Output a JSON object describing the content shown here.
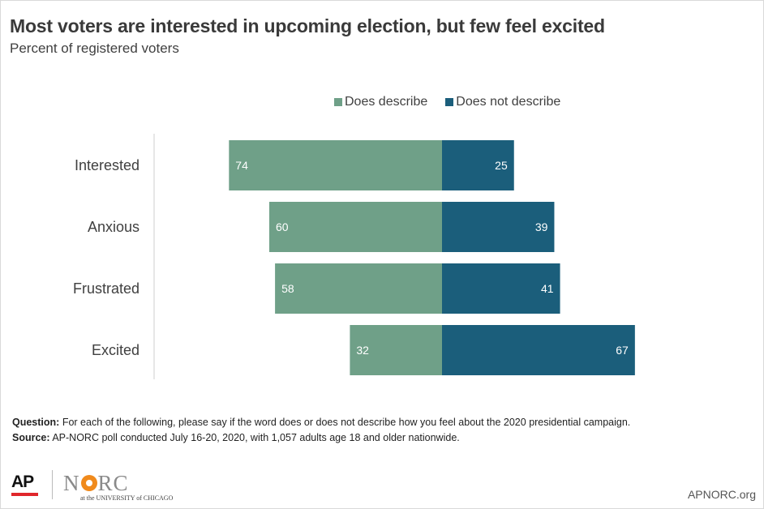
{
  "chart_data": {
    "type": "bar",
    "orientation": "horizontal-diverging",
    "title": "Most voters are interested in upcoming election, but few feel excited",
    "subtitle": "Percent of registered voters",
    "categories": [
      "Interested",
      "Anxious",
      "Frustrated",
      "Excited"
    ],
    "series": [
      {
        "name": "Does describe",
        "values": [
          74,
          60,
          58,
          32
        ],
        "color": "#6fa088"
      },
      {
        "name": "Does not describe",
        "values": [
          25,
          39,
          41,
          67
        ],
        "color": "#1b5e7b"
      }
    ],
    "legend_position": "top",
    "grid": false
  },
  "notes": {
    "question_label": "Question:",
    "question_text": "For each of the following, please say if the word does or does not describe how you feel about the 2020 presidential campaign.",
    "source_label": "Source:",
    "source_text": "AP-NORC poll conducted July 16-20, 2020,  with 1,057 adults age 18 and older nationwide."
  },
  "footer": {
    "ap_logo": "AP",
    "norc_logo_left": "N",
    "norc_logo_right": "RC",
    "norc_tagline": "at the UNIVERSITY of CHICAGO",
    "site": "APNORC.org"
  }
}
